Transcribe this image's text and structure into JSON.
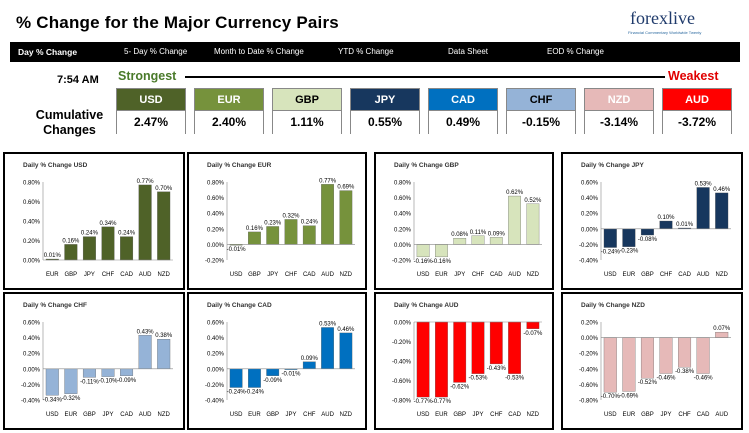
{
  "header": {
    "title": "% Change for the Major Currency Pairs",
    "logo_text": "forexlive",
    "logo_tagline": "Financial Commentary Worldwide Twenty"
  },
  "tabs": [
    "Day % Change",
    "5- Day % Change",
    "Month to Date % Change",
    "YTD % Change",
    "Data Sheet",
    "EOD % Change"
  ],
  "time": "7:54 AM",
  "strongest_label": "Strongest",
  "weakest_label": "Weakest",
  "cumulative_label": "Cumulative Changes",
  "currencies": [
    {
      "name": "USD",
      "value": "2.47%",
      "color": "#4f6228",
      "text": "#fff"
    },
    {
      "name": "EUR",
      "value": "2.40%",
      "color": "#76923c",
      "text": "#fff"
    },
    {
      "name": "GBP",
      "value": "1.11%",
      "color": "#d7e4bc",
      "text": "#000"
    },
    {
      "name": "JPY",
      "value": "0.55%",
      "color": "#17375e",
      "text": "#fff"
    },
    {
      "name": "CAD",
      "value": "0.49%",
      "color": "#0070c0",
      "text": "#fff"
    },
    {
      "name": "CHF",
      "value": "-0.15%",
      "color": "#95b3d7",
      "text": "#000"
    },
    {
      "name": "NZD",
      "value": "-3.14%",
      "color": "#e6b9b8",
      "text": "#fff"
    },
    {
      "name": "AUD",
      "value": "-3.72%",
      "color": "#ff0000",
      "text": "#fff"
    }
  ],
  "chart_data": [
    {
      "type": "bar",
      "title": "Daily % Change USD",
      "color": "#4f6228",
      "categories": [
        "EUR",
        "GBP",
        "JPY",
        "CHF",
        "CAD",
        "AUD",
        "NZD"
      ],
      "values": [
        0.01,
        0.16,
        0.24,
        0.34,
        0.24,
        0.77,
        0.7
      ],
      "labels": [
        "0.01%",
        "0.16%",
        "0.24%",
        "0.34%",
        "0.24%",
        "0.77%",
        "0.70%"
      ],
      "ylim": [
        0,
        0.8
      ],
      "ticks": [
        "0.00%",
        "0.20%",
        "0.40%",
        "0.60%",
        "0.80%"
      ]
    },
    {
      "type": "bar",
      "title": "Daily % Change EUR",
      "color": "#76923c",
      "categories": [
        "USD",
        "GBP",
        "JPY",
        "CHF",
        "CAD",
        "AUD",
        "NZD"
      ],
      "values": [
        -0.01,
        0.16,
        0.23,
        0.32,
        0.24,
        0.77,
        0.69
      ],
      "labels": [
        "-0.01%",
        "0.16%",
        "0.23%",
        "0.32%",
        "0.24%",
        "0.77%",
        "0.69%"
      ],
      "ylim": [
        -0.2,
        0.8
      ],
      "ticks": [
        "-0.20%",
        "0.00%",
        "0.20%",
        "0.40%",
        "0.60%",
        "0.80%"
      ]
    },
    {
      "type": "bar",
      "title": "Daily % Change GBP",
      "color": "#d7e4bc",
      "categories": [
        "USD",
        "EUR",
        "JPY",
        "CHF",
        "CAD",
        "AUD",
        "NZD"
      ],
      "values": [
        -0.16,
        -0.16,
        0.08,
        0.11,
        0.09,
        0.62,
        0.52
      ],
      "labels": [
        "-0.16%",
        "-0.16%",
        "0.08%",
        "0.11%",
        "0.09%",
        "0.62%",
        "0.52%"
      ],
      "ylim": [
        -0.2,
        0.8
      ],
      "ticks": [
        "-0.20%",
        "0.00%",
        "0.20%",
        "0.40%",
        "0.60%",
        "0.80%"
      ]
    },
    {
      "type": "bar",
      "title": "Daily % Change JPY",
      "color": "#17375e",
      "categories": [
        "USD",
        "EUR",
        "GBP",
        "CHF",
        "CAD",
        "AUD",
        "NZD"
      ],
      "values": [
        -0.24,
        -0.23,
        -0.08,
        0.1,
        0.01,
        0.53,
        0.46
      ],
      "labels": [
        "-0.24%",
        "-0.23%",
        "-0.08%",
        "0.10%",
        "0.01%",
        "0.53%",
        "0.46%"
      ],
      "ylim": [
        -0.4,
        0.6
      ],
      "ticks": [
        "-0.40%",
        "-0.20%",
        "0.00%",
        "0.20%",
        "0.40%",
        "0.60%"
      ]
    },
    {
      "type": "bar",
      "title": "Daily % Change CHF",
      "color": "#95b3d7",
      "categories": [
        "USD",
        "EUR",
        "GBP",
        "JPY",
        "CAD",
        "AUD",
        "NZD"
      ],
      "values": [
        -0.34,
        -0.32,
        -0.11,
        -0.1,
        -0.09,
        0.43,
        0.38
      ],
      "labels": [
        "-0.34%",
        "-0.32%",
        "-0.11%",
        "-0.10%",
        "-0.09%",
        "0.43%",
        "0.38%"
      ],
      "ylim": [
        -0.4,
        0.6
      ],
      "ticks": [
        "-0.40%",
        "-0.20%",
        "0.00%",
        "0.20%",
        "0.40%",
        "0.60%"
      ]
    },
    {
      "type": "bar",
      "title": "Daily % Change CAD",
      "color": "#0070c0",
      "categories": [
        "USD",
        "EUR",
        "GBP",
        "JPY",
        "CHF",
        "AUD",
        "NZD"
      ],
      "values": [
        -0.24,
        -0.24,
        -0.09,
        -0.01,
        0.09,
        0.53,
        0.46
      ],
      "labels": [
        "-0.24%",
        "-0.24%",
        "-0.09%",
        "-0.01%",
        "0.09%",
        "0.53%",
        "0.46%"
      ],
      "ylim": [
        -0.4,
        0.6
      ],
      "ticks": [
        "-0.40%",
        "-0.20%",
        "0.00%",
        "0.20%",
        "0.40%",
        "0.60%"
      ]
    },
    {
      "type": "bar",
      "title": "Daily % Change AUD",
      "color": "#ff0000",
      "categories": [
        "USD",
        "EUR",
        "GBP",
        "JPY",
        "CHF",
        "CAD",
        "NZD"
      ],
      "values": [
        -0.77,
        -0.77,
        -0.62,
        -0.53,
        -0.43,
        -0.53,
        -0.07
      ],
      "labels": [
        "-0.77%",
        "-0.77%",
        "-0.62%",
        "-0.53%",
        "-0.43%",
        "-0.53%",
        "-0.07%"
      ],
      "ylim": [
        -0.8,
        0
      ],
      "ticks": [
        "-0.80%",
        "-0.60%",
        "-0.40%",
        "-0.20%",
        "0.00%"
      ]
    },
    {
      "type": "bar",
      "title": "Daily % Change NZD",
      "color": "#e6b9b8",
      "categories": [
        "USD",
        "EUR",
        "GBP",
        "JPY",
        "CHF",
        "CAD",
        "AUD"
      ],
      "values": [
        -0.7,
        -0.69,
        -0.52,
        -0.46,
        -0.38,
        -0.46,
        0.07
      ],
      "labels": [
        "-0.70%",
        "-0.69%",
        "-0.52%",
        "-0.46%",
        "-0.38%",
        "-0.46%",
        "0.07%"
      ],
      "ylim": [
        -0.8,
        0.2
      ],
      "ticks": [
        "-0.80%",
        "-0.60%",
        "-0.40%",
        "-0.20%",
        "0.00%",
        "0.20%"
      ]
    }
  ]
}
